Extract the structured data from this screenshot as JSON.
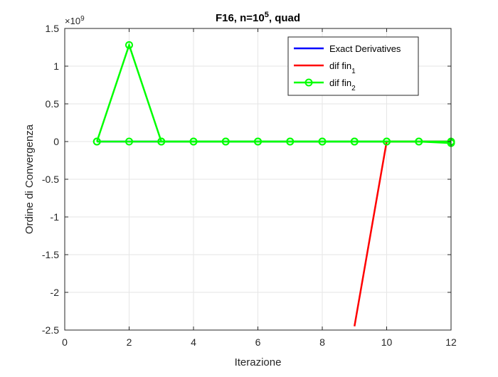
{
  "chart_data": {
    "type": "line",
    "title": "F16, n=10^5, quad",
    "title_parts": {
      "prefix": "F16, n=10",
      "exponent": "5",
      "suffix": ", quad"
    },
    "xlabel": "Iterazione",
    "ylabel": "Ordine di Convergenza",
    "y_multiplier": {
      "base": "×10",
      "exponent": "9"
    },
    "xlim": [
      0,
      12
    ],
    "ylim": [
      -2.5,
      1.5
    ],
    "y_scale_factor": 1000000000,
    "xticks": [
      0,
      2,
      4,
      6,
      8,
      10,
      12
    ],
    "xtick_labels": [
      "0",
      "2",
      "4",
      "6",
      "8",
      "10",
      "12"
    ],
    "yticks": [
      -2.5,
      -2,
      -1.5,
      -1,
      -0.5,
      0,
      0.5,
      1,
      1.5
    ],
    "ytick_labels": [
      "-2.5",
      "-2",
      "-1.5",
      "-1",
      "-0.5",
      "0",
      "0.5",
      "1",
      "1.5"
    ],
    "grid": true,
    "legend_position": "top-right",
    "series": [
      {
        "name": "Exact Derivatives",
        "color": "#0000ff",
        "marker": "none",
        "x": [
          1,
          2,
          3,
          4,
          5,
          6,
          7,
          8,
          9,
          10,
          11,
          12
        ],
        "y": [
          0,
          0,
          0,
          0,
          0,
          0,
          0,
          0,
          0,
          0,
          0,
          0
        ]
      },
      {
        "name": "dif fin",
        "name_subscript": "1",
        "color": "#ff0000",
        "marker": "none",
        "x": [
          9,
          10,
          11,
          12
        ],
        "y": [
          -2.45,
          0,
          0,
          0
        ]
      },
      {
        "name": "dif fin",
        "name_subscript": "2",
        "color": "#00ff00",
        "marker": "circle",
        "x": [
          1,
          2,
          3,
          4,
          5,
          6,
          7,
          8,
          9,
          10,
          11,
          12
        ],
        "y": [
          0,
          1.28,
          0,
          0,
          0,
          0,
          0,
          0,
          0,
          0,
          0,
          0
        ]
      },
      {
        "name": "",
        "color": "#00ff00",
        "marker": "circle",
        "legend": false,
        "x": [
          1,
          2,
          3,
          4,
          5,
          6,
          7,
          8,
          9,
          10,
          11,
          12
        ],
        "y": [
          0,
          0,
          0,
          0,
          0,
          0,
          0,
          0,
          0,
          0,
          0,
          -0.02
        ]
      }
    ]
  }
}
